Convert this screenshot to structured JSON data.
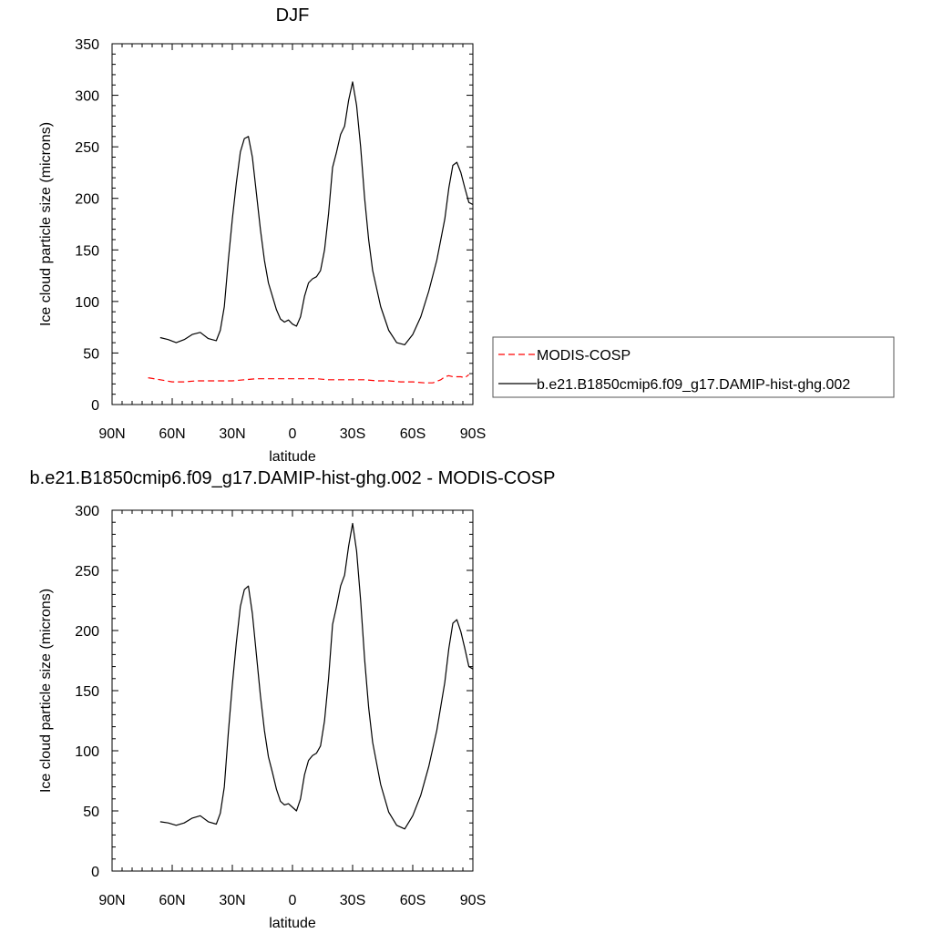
{
  "chart_data": [
    {
      "type": "line",
      "title": "DJF",
      "xlabel": "latitude",
      "ylabel": "Ice cloud particle size (microns)",
      "xlim": [
        90,
        -90
      ],
      "ylim": [
        0,
        350
      ],
      "x_ticks": [
        90,
        60,
        30,
        0,
        -30,
        -60,
        -90
      ],
      "x_tick_labels": [
        "90N",
        "60N",
        "30N",
        "0",
        "30S",
        "60S",
        "90S"
      ],
      "y_ticks": [
        0,
        50,
        100,
        150,
        200,
        250,
        300,
        350
      ],
      "y_tick_labels": [
        "0",
        "50",
        "100",
        "150",
        "200",
        "250",
        "300",
        "350"
      ],
      "grid": false,
      "legend_position": "right",
      "series": [
        {
          "name": "MODIS-COSP",
          "color": "#ff0000",
          "dash": "dashed",
          "x": [
            72,
            66,
            60,
            54,
            48,
            42,
            36,
            30,
            24,
            18,
            12,
            6,
            0,
            -6,
            -12,
            -18,
            -24,
            -30,
            -36,
            -42,
            -48,
            -54,
            -60,
            -66,
            -70,
            -74,
            -76,
            -78,
            -80,
            -82,
            -84,
            -86,
            -88
          ],
          "y": [
            26,
            24,
            22,
            22,
            23,
            23,
            23,
            23,
            24,
            25,
            25,
            25,
            25,
            25,
            25,
            24,
            24,
            24,
            24,
            23,
            23,
            22,
            22,
            21,
            21,
            24,
            27,
            28,
            27,
            27,
            27,
            26,
            29
          ]
        },
        {
          "name": "b.e21.B1850cmip6.f09_g17.DAMIP-hist-ghg.002",
          "color": "#000000",
          "dash": "solid",
          "x": [
            66,
            62,
            58,
            54,
            50,
            46,
            42,
            38,
            36,
            34,
            32,
            30,
            28,
            26,
            24,
            22,
            20,
            18,
            16,
            14,
            12,
            10,
            8,
            6,
            4,
            2,
            0,
            -2,
            -4,
            -6,
            -8,
            -10,
            -12,
            -14,
            -16,
            -18,
            -20,
            -22,
            -24,
            -26,
            -28,
            -30,
            -32,
            -34,
            -36,
            -38,
            -40,
            -44,
            -48,
            -52,
            -56,
            -60,
            -64,
            -68,
            -72,
            -76,
            -78,
            -80,
            -82,
            -84,
            -86,
            -88,
            -90
          ],
          "y": [
            65,
            63,
            60,
            63,
            68,
            70,
            64,
            62,
            72,
            95,
            140,
            180,
            215,
            245,
            258,
            260,
            240,
            205,
            170,
            140,
            118,
            105,
            92,
            83,
            80,
            82,
            78,
            76,
            85,
            105,
            118,
            122,
            124,
            130,
            150,
            185,
            230,
            245,
            262,
            270,
            295,
            313,
            290,
            250,
            200,
            160,
            130,
            95,
            72,
            60,
            58,
            68,
            85,
            110,
            140,
            180,
            210,
            232,
            235,
            225,
            210,
            196,
            194
          ]
        }
      ]
    },
    {
      "type": "line",
      "title": "b.e21.B1850cmip6.f09_g17.DAMIP-hist-ghg.002 - MODIS-COSP",
      "xlabel": "latitude",
      "ylabel": "Ice cloud particle size (microns)",
      "xlim": [
        90,
        -90
      ],
      "ylim": [
        0,
        300
      ],
      "x_ticks": [
        90,
        60,
        30,
        0,
        -30,
        -60,
        -90
      ],
      "x_tick_labels": [
        "90N",
        "60N",
        "30N",
        "0",
        "30S",
        "60S",
        "90S"
      ],
      "y_ticks": [
        0,
        50,
        100,
        150,
        200,
        250,
        300
      ],
      "y_tick_labels": [
        "0",
        "50",
        "100",
        "150",
        "200",
        "250",
        "300"
      ],
      "grid": false,
      "series": [
        {
          "color": "#000000",
          "dash": "solid",
          "x": [
            66,
            62,
            58,
            54,
            50,
            46,
            42,
            38,
            36,
            34,
            32,
            30,
            28,
            26,
            24,
            22,
            20,
            18,
            16,
            14,
            12,
            10,
            8,
            6,
            4,
            2,
            0,
            -2,
            -4,
            -6,
            -8,
            -10,
            -12,
            -14,
            -16,
            -18,
            -20,
            -22,
            -24,
            -26,
            -28,
            -30,
            -32,
            -34,
            -36,
            -38,
            -40,
            -44,
            -48,
            -52,
            -56,
            -60,
            -64,
            -68,
            -72,
            -76,
            -78,
            -80,
            -82,
            -84,
            -86,
            -88,
            -90
          ],
          "y": [
            41,
            40,
            38,
            40,
            44,
            46,
            41,
            39,
            48,
            70,
            115,
            155,
            190,
            220,
            234,
            237,
            214,
            180,
            146,
            117,
            95,
            82,
            68,
            58,
            55,
            56,
            53,
            50,
            60,
            80,
            92,
            96,
            98,
            104,
            125,
            160,
            205,
            220,
            237,
            246,
            270,
            289,
            266,
            225,
            176,
            136,
            107,
            72,
            49,
            38,
            35,
            46,
            63,
            87,
            117,
            157,
            185,
            206,
            209,
            199,
            185,
            170,
            168
          ]
        }
      ]
    }
  ]
}
